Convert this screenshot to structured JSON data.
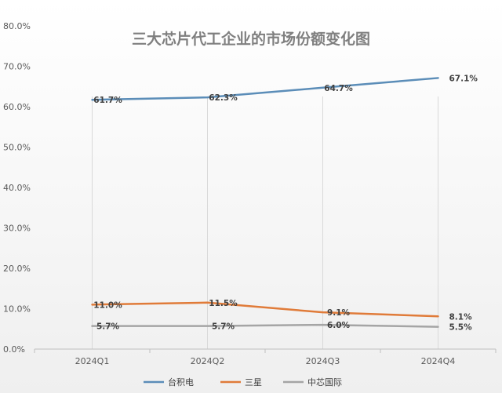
{
  "chart_data": {
    "type": "line",
    "title": "三大芯片代工企业的市场份额变化图",
    "categories": [
      "2024Q1",
      "2024Q2",
      "2024Q3",
      "2024Q4"
    ],
    "ylim": [
      0,
      80
    ],
    "yticks": [
      0,
      10,
      20,
      30,
      40,
      50,
      60,
      70,
      80
    ],
    "ytick_labels": [
      "0.0%",
      "10.0%",
      "20.0%",
      "30.0%",
      "40.0%",
      "50.0%",
      "60.0%",
      "70.0%",
      "80.0%"
    ],
    "grid": {
      "vertical": true,
      "horizontal": false
    },
    "legend_position": "bottom",
    "series": [
      {
        "name": "台积电",
        "color": "#5b8db8",
        "values": [
          61.7,
          62.3,
          64.7,
          67.1
        ],
        "labels": [
          "61.7%",
          "62.3%",
          "64.7%",
          "67.1%"
        ]
      },
      {
        "name": "三星",
        "color": "#e07b39",
        "values": [
          11.0,
          11.5,
          9.1,
          8.1
        ],
        "labels": [
          "11.0%",
          "11.5%",
          "9.1%",
          "8.1%"
        ]
      },
      {
        "name": "中芯国际",
        "color": "#a5a5a5",
        "values": [
          5.7,
          5.7,
          6.0,
          5.5
        ],
        "labels": [
          "5.7%",
          "5.7%",
          "6.0%",
          "5.5%"
        ]
      }
    ]
  }
}
